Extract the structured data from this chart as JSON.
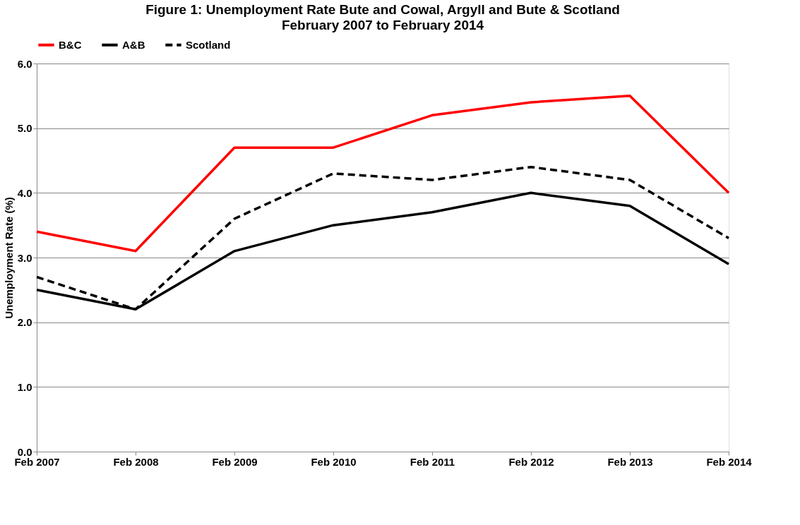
{
  "chart_data": {
    "type": "line",
    "title": "Figure 1: Unemployment Rate Bute and Cowal, Argyll and Bute & Scotland",
    "subtitle": "February 2007 to February 2014",
    "ylabel": "Unemployment Rate (%)",
    "categories": [
      "Feb 2007",
      "Feb 2008",
      "Feb 2009",
      "Feb 2010",
      "Feb 2011",
      "Feb 2012",
      "Feb 2013",
      "Feb 2014"
    ],
    "series": [
      {
        "name": "B&C",
        "color": "#ff0000",
        "line_style": "solid",
        "values": [
          3.4,
          3.1,
          4.7,
          4.7,
          5.2,
          5.4,
          5.5,
          4.0
        ]
      },
      {
        "name": "A&B",
        "color": "#000000",
        "line_style": "solid",
        "values": [
          2.5,
          2.2,
          3.1,
          3.5,
          3.7,
          4.0,
          3.8,
          2.9
        ]
      },
      {
        "name": "Scotland",
        "color": "#000000",
        "line_style": "dashed",
        "values": [
          2.7,
          2.2,
          3.6,
          4.3,
          4.2,
          4.4,
          4.2,
          3.3
        ]
      }
    ],
    "ylim": [
      0,
      6
    ],
    "yticks": [
      {
        "value": 0,
        "label": "0.0"
      },
      {
        "value": 1,
        "label": "1.0"
      },
      {
        "value": 2,
        "label": "2.0"
      },
      {
        "value": 3,
        "label": "3.0"
      },
      {
        "value": 4,
        "label": "4.0"
      },
      {
        "value": 5,
        "label": "5.0"
      },
      {
        "value": 6,
        "label": "6.0"
      }
    ],
    "grid": "y",
    "legend": "top",
    "marker": "none"
  }
}
